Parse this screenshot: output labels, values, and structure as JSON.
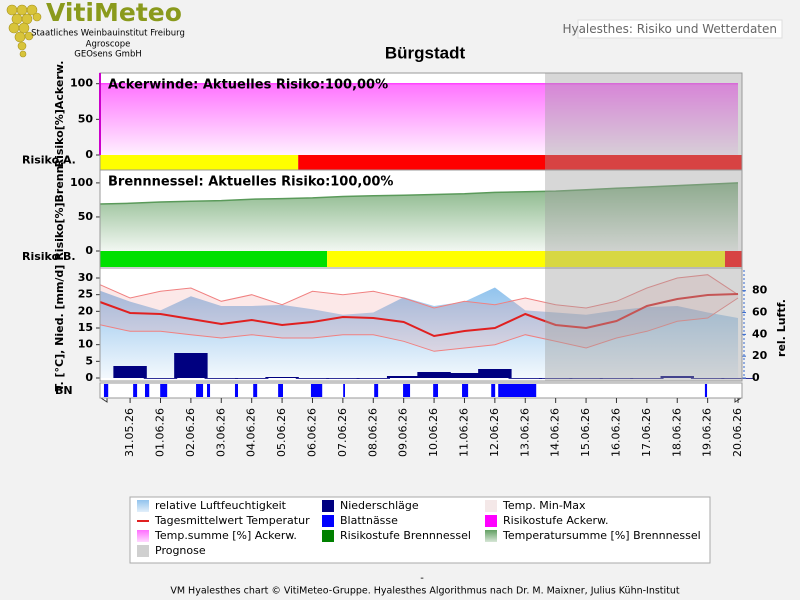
{
  "header": {
    "logo": "VitiMeteo",
    "institutions": [
      "Staatliches Weinbauinstitut Freiburg",
      "Agroscope",
      "GEOsens GmbH"
    ],
    "app_title": "Hyalesthes: Risiko und Wetterdaten"
  },
  "title": "Bürgstadt",
  "chart_data": [
    {
      "type": "area",
      "label": "Ackerwinde:  Aktuelles  Risiko:100,00%",
      "y_label": "Risiko[%]Ackerw.",
      "ylim": [
        0,
        115
      ],
      "yticks": [
        0,
        50,
        100
      ],
      "series": [
        {
          "color": "#ff44ff",
          "x": [
            -0.99,
            20
          ],
          "values": [
            100,
            100
          ]
        }
      ],
      "risk": {
        "label": "Risiko A.",
        "segments": [
          {
            "from": -0.99,
            "to": 5.53,
            "color": "#ffff00"
          },
          {
            "from": 5.53,
            "to": 20.13,
            "color": "#ff0000"
          }
        ]
      }
    },
    {
      "type": "area",
      "label": "Brennnessel:  Aktuelles  Risiko:100,00%",
      "y_label": "Risiko[%]Brenn.",
      "ylim": [
        0,
        116
      ],
      "yticks": [
        0,
        50,
        100
      ],
      "series": [
        {
          "color": "#5a9a5a",
          "x": [
            -0.99,
            0,
            1,
            2,
            3,
            4,
            5,
            6,
            7,
            8,
            9,
            10,
            11,
            12,
            13,
            14,
            15,
            16,
            17,
            18,
            19,
            20
          ],
          "values": [
            69,
            70,
            72,
            73,
            74,
            76,
            77,
            78,
            80,
            81,
            82,
            83,
            84,
            86,
            87,
            88,
            90,
            92,
            94,
            96,
            98,
            100
          ]
        }
      ],
      "risk": {
        "label": "Risiko B.",
        "segments": [
          {
            "from": -0.99,
            "to": 6.48,
            "color": "#00e000"
          },
          {
            "from": 6.48,
            "to": 19.57,
            "color": "#ffff00"
          },
          {
            "from": 19.57,
            "to": 20.13,
            "color": "#ff0000"
          }
        ]
      }
    },
    {
      "type": "weather",
      "y_label": "T. [°C], Nied. [mm/d]",
      "y2_label": "rel. Luftf.",
      "ylim": [
        0,
        32.4
      ],
      "yticks": [
        0,
        5,
        10,
        15,
        20,
        25,
        30
      ],
      "y2lim": [
        0,
        99
      ],
      "y2ticks": [
        0,
        20,
        40,
        60,
        80
      ],
      "xlim": [
        -0.99,
        20.13
      ],
      "xticks": [
        {
          "value": 0,
          "label": "31.05.26"
        },
        {
          "value": 1,
          "label": "01.06.26"
        },
        {
          "value": 2,
          "label": "02.06.26"
        },
        {
          "value": 3,
          "label": "03.06.26"
        },
        {
          "value": 4,
          "label": "04.06.26"
        },
        {
          "value": 5,
          "label": "05.06.26"
        },
        {
          "value": 6,
          "label": "06.06.26"
        },
        {
          "value": 7,
          "label": "07.06.26"
        },
        {
          "value": 8,
          "label": "08.06.26"
        },
        {
          "value": 9,
          "label": "09.06.26"
        },
        {
          "value": 10,
          "label": "10.06.26"
        },
        {
          "value": 11,
          "label": "11.06.26"
        },
        {
          "value": 12,
          "label": "12.06.26"
        },
        {
          "value": 13,
          "label": "13.06.26"
        },
        {
          "value": 14,
          "label": "14.06.26"
        },
        {
          "value": 15,
          "label": "15.06.26"
        },
        {
          "value": 16,
          "label": "16.06.26"
        },
        {
          "value": 17,
          "label": "17.06.26"
        },
        {
          "value": 18,
          "label": "18.06.26"
        },
        {
          "value": 19,
          "label": "19.06.26"
        },
        {
          "value": 20,
          "label": "20.06.26"
        }
      ],
      "x": [
        -0.99,
        0,
        1,
        2,
        3,
        4,
        5,
        6,
        7,
        8,
        9,
        10,
        11,
        12,
        13,
        14,
        15,
        16,
        17,
        18,
        19,
        20
      ],
      "series": [
        {
          "kind": "area",
          "axis": "y2",
          "color": "#8cc0ec",
          "values": [
            80,
            70,
            62,
            75,
            66,
            66,
            67,
            63,
            58,
            60,
            74,
            66,
            70,
            83,
            62,
            60,
            58,
            62,
            65,
            66,
            60,
            55
          ]
        },
        {
          "kind": "range",
          "color": "#f08080",
          "high": [
            28,
            24,
            26,
            27,
            23,
            25,
            22,
            26,
            25,
            26,
            24,
            21,
            23,
            22,
            24,
            22,
            21,
            23,
            27,
            30,
            31,
            25
          ],
          "low": [
            16,
            14,
            14,
            13,
            12,
            13,
            12,
            12,
            13,
            13,
            11,
            8,
            9,
            10,
            13,
            11,
            9,
            12,
            14,
            17,
            18,
            24
          ]
        },
        {
          "kind": "bar",
          "color": "#000080",
          "values": [
            null,
            3.6,
            0,
            7.5,
            0,
            0,
            0.3,
            0,
            0,
            0,
            0.6,
            1.8,
            1.5,
            2.7,
            0,
            0,
            0,
            0,
            0,
            0.6,
            0,
            0
          ]
        },
        {
          "kind": "line",
          "color": "#e02020",
          "values": [
            22.8,
            19.5,
            19.2,
            17.7,
            16.2,
            17.4,
            15.9,
            16.8,
            18.3,
            18,
            16.8,
            12.6,
            14.1,
            15,
            19.2,
            15.9,
            15,
            17.1,
            21.6,
            23.7,
            24.9,
            25.2
          ]
        }
      ],
      "leaf_wetness": {
        "label": "BN",
        "color": "#0000ff",
        "segments": [
          [
            -0.86,
            -0.72
          ],
          [
            0.1,
            0.23
          ],
          [
            0.49,
            0.63
          ],
          [
            0.99,
            1.22
          ],
          [
            2.17,
            2.4
          ],
          [
            2.53,
            2.63
          ],
          [
            3.45,
            3.55
          ],
          [
            4.05,
            4.18
          ],
          [
            4.87,
            5.03
          ],
          [
            5.95,
            6.32
          ],
          [
            7.01,
            7.07
          ],
          [
            8.03,
            8.16
          ],
          [
            8.98,
            9.21
          ],
          [
            9.97,
            10.13
          ],
          [
            10.92,
            11.12
          ],
          [
            11.88,
            12.01
          ],
          [
            12.11,
            13.36
          ],
          [
            18.91,
            18.98
          ]
        ]
      },
      "prognose": {
        "from": 13.65,
        "to": 20.13,
        "color": "#a0a0a0"
      }
    }
  ],
  "legend": [
    {
      "name": "relative Luftfeuchtigkeit",
      "color": "#8cc0ec",
      "style": "gradient"
    },
    {
      "name": "Niederschläge",
      "color": "#000080",
      "style": "box"
    },
    {
      "name": "Temp. Min-Max",
      "color": "#f4e8e8",
      "style": "box"
    },
    {
      "name": "Tagesmittelwert Temperatur",
      "color": "#e02020",
      "style": "line"
    },
    {
      "name": "Blattnässe",
      "color": "#0000ff",
      "style": "box"
    },
    {
      "name": "Risikostufe Ackerw.",
      "color": "#ff00ff",
      "style": "box"
    },
    {
      "name": "Temp.summe [%] Ackerw.",
      "color": "#ff66ff",
      "style": "gradient"
    },
    {
      "name": "Risikostufe Brennnessel",
      "color": "#008000",
      "style": "box"
    },
    {
      "name": "Temperatursumme [%] Brennnessel",
      "color": "#5a9a5a",
      "style": "gradient"
    },
    {
      "name": "Prognose",
      "color": "#d0d0d0",
      "style": "box"
    }
  ],
  "footer": {
    "dash": "-",
    "credit": "VM Hyalesthes chart © VitiMeteo-Gruppe. Hyalesthes Algorithmus nach Dr. M. Maixner, Julius Kühn-Institut"
  }
}
